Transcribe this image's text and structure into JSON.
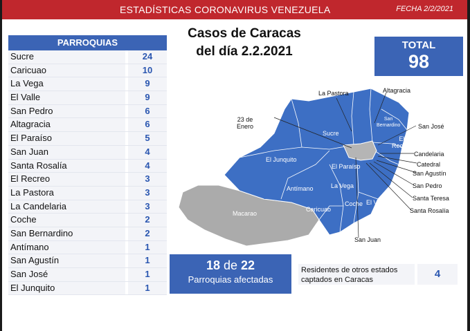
{
  "header": {
    "title": "ESTADÍSTICAS CORONAVIRUS VENEZUELA",
    "date": "FECHA 2/2/2021"
  },
  "table": {
    "heading": "PARROQUIAS",
    "rows": [
      {
        "name": "Sucre",
        "value": "24"
      },
      {
        "name": "Caricuao",
        "value": "10"
      },
      {
        "name": "La Vega",
        "value": "9"
      },
      {
        "name": "El Valle",
        "value": "9"
      },
      {
        "name": "San Pedro",
        "value": "6"
      },
      {
        "name": "Altagracia",
        "value": "6"
      },
      {
        "name": "El Paraíso",
        "value": "5"
      },
      {
        "name": "San Juan",
        "value": "4"
      },
      {
        "name": "Santa Rosalía",
        "value": "4"
      },
      {
        "name": "El Recreo",
        "value": "3"
      },
      {
        "name": "La Pastora",
        "value": "3"
      },
      {
        "name": "La Candelaria",
        "value": "3"
      },
      {
        "name": "Coche",
        "value": "2"
      },
      {
        "name": "San Bernardino",
        "value": "2"
      },
      {
        "name": "Antímano",
        "value": "1"
      },
      {
        "name": "San Agustín",
        "value": "1"
      },
      {
        "name": "San José",
        "value": "1"
      },
      {
        "name": "El Junquito",
        "value": "1"
      }
    ]
  },
  "main": {
    "title_line1": "Casos de Caracas",
    "title_line2": "del día 2.2.2021"
  },
  "total": {
    "label": "TOTAL",
    "value": "98"
  },
  "map": {
    "colors": {
      "affected": "#3d6fc4",
      "unaffected": "#ababab",
      "border": "#ffffff"
    },
    "inner_labels": {
      "sucre": "Sucre",
      "el_junquito": "El Junquito",
      "el_paraiso": "El Paraíso",
      "antimano": "Antímano",
      "la_vega": "La Vega",
      "caricuao": "Caricuao",
      "coche": "Coche",
      "el_valle": "El Valle",
      "macarao": "Macarao",
      "san_bernardino_1": "San",
      "san_bernardino_2": "Bernardino",
      "el_recreo_1": "El",
      "el_recreo_2": "Recreo"
    },
    "callouts": {
      "la_pastora": "La Pastora",
      "altagracia": "Altagracia",
      "veintitres_1": "23 de",
      "veintitres_2": "Enero",
      "san_jose": "San José",
      "candelaria": "Candelaria",
      "catedral": "Catedral",
      "san_agustin": "San Agustín",
      "san_pedro": "San Pedro",
      "santa_teresa": "Santa Teresa",
      "santa_rosalia": "Santa Rosalía",
      "san_juan": "San Juan"
    }
  },
  "affected": {
    "count": "18",
    "connector": "de",
    "total": "22",
    "label": "Parroquias afectadas"
  },
  "residents": {
    "label": "Residentes de otros estados captados en Caracas",
    "value": "4"
  }
}
